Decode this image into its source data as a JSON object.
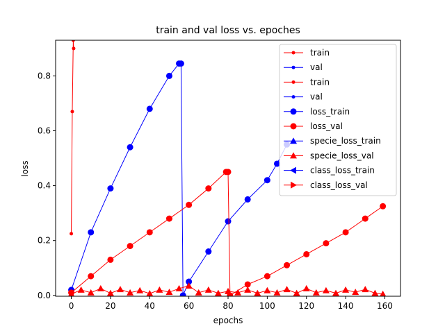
{
  "chart_data": {
    "type": "line",
    "title": "train and val loss vs. epoches",
    "xlabel": "epochs",
    "ylabel": "loss",
    "xlim": [
      -8,
      168
    ],
    "ylim": [
      -0.003,
      0.93
    ],
    "xticks": [
      0,
      20,
      40,
      60,
      80,
      100,
      120,
      140,
      160
    ],
    "yticks": [
      0.0,
      0.2,
      0.4,
      0.6,
      0.8
    ],
    "grid": false,
    "legend_position": "top-right",
    "series": [
      {
        "name": "train",
        "color": "#ff0000",
        "marker": "dot",
        "x": [
          0,
          0.5,
          1,
          1.2
        ],
        "y": [
          0.225,
          0.67,
          0.93,
          0.9
        ]
      },
      {
        "name": "val",
        "color": "#0000ff",
        "marker": "dot",
        "x": [],
        "y": []
      },
      {
        "name": "train",
        "color": "#ff0000",
        "marker": "dot",
        "x": [],
        "y": []
      },
      {
        "name": "val",
        "color": "#0000ff",
        "marker": "dot",
        "x": [],
        "y": []
      },
      {
        "name": "loss_train",
        "color": "#0000ff",
        "marker": "circle",
        "x": [
          0,
          10,
          20,
          30,
          40,
          50,
          55,
          56,
          57,
          60,
          70,
          80,
          90,
          100,
          105,
          110
        ],
        "y": [
          0.02,
          0.23,
          0.39,
          0.54,
          0.68,
          0.8,
          0.845,
          0.845,
          0.0,
          0.05,
          0.16,
          0.27,
          0.35,
          0.42,
          0.48,
          0.55
        ]
      },
      {
        "name": "loss_val",
        "color": "#ff0000",
        "marker": "circle",
        "x": [
          0,
          10,
          20,
          30,
          40,
          50,
          60,
          70,
          79,
          80,
          81,
          90,
          100,
          110,
          120,
          130,
          140,
          150,
          159
        ],
        "y": [
          0.01,
          0.07,
          0.13,
          0.18,
          0.23,
          0.28,
          0.33,
          0.39,
          0.45,
          0.45,
          0.0,
          0.04,
          0.07,
          0.11,
          0.15,
          0.19,
          0.23,
          0.28,
          0.325
        ]
      },
      {
        "name": "specie_loss_train",
        "color": "#0000ff",
        "marker": "triangle-up",
        "x": [],
        "y": []
      },
      {
        "name": "specie_loss_val",
        "color": "#ff0000",
        "marker": "triangle-up",
        "x": [
          0,
          5,
          10,
          15,
          20,
          25,
          30,
          35,
          40,
          45,
          50,
          55,
          60,
          65,
          70,
          75,
          80,
          85,
          90,
          95,
          100,
          105,
          110,
          115,
          120,
          125,
          130,
          135,
          140,
          145,
          150,
          155,
          159
        ],
        "y": [
          0.005,
          0.02,
          0.01,
          0.025,
          0.008,
          0.022,
          0.01,
          0.018,
          0.007,
          0.02,
          0.012,
          0.025,
          0.035,
          0.01,
          0.02,
          0.008,
          0.015,
          0.01,
          0.02,
          0.008,
          0.018,
          0.01,
          0.022,
          0.008,
          0.025,
          0.01,
          0.018,
          0.008,
          0.02,
          0.012,
          0.022,
          0.008,
          0.005
        ]
      },
      {
        "name": "class_loss_train",
        "color": "#0000ff",
        "marker": "triangle-left",
        "x": [],
        "y": []
      },
      {
        "name": "class_loss_val",
        "color": "#ff0000",
        "marker": "triangle-right",
        "x": [],
        "y": []
      }
    ]
  }
}
